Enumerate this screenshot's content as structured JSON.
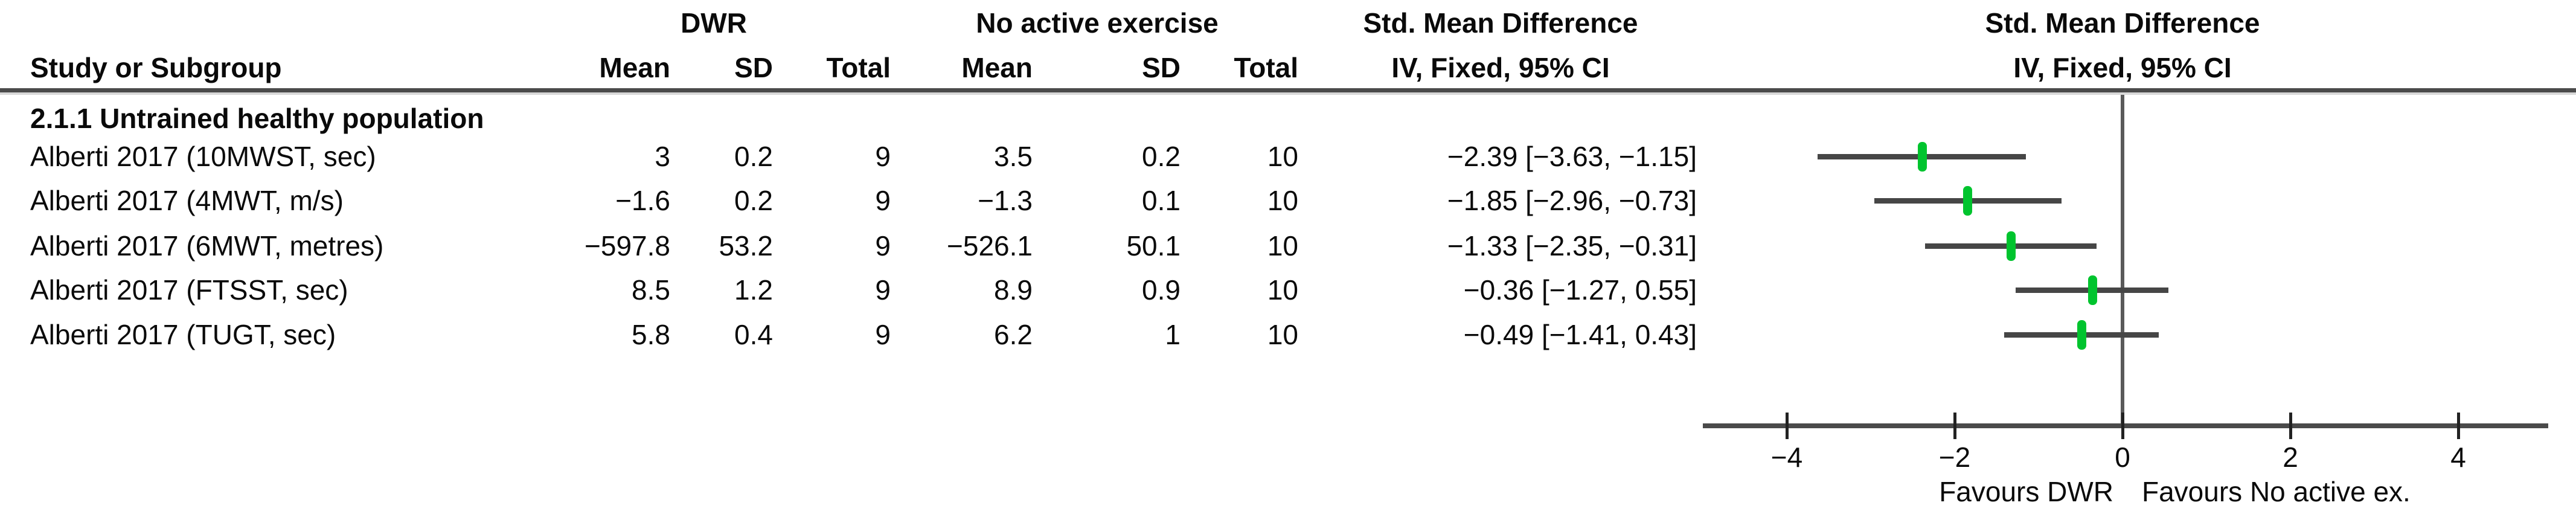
{
  "header": {
    "group1_label": "DWR",
    "group2_label": "No active exercise",
    "effect_label": "Std. Mean Difference",
    "effect_method_label": "IV, Fixed, 95% CI",
    "plot_effect_label": "Std. Mean Difference",
    "plot_effect_method_label": "IV, Fixed, 95% CI",
    "study_col_label": "Study or Subgroup",
    "mean_label": "Mean",
    "sd_label": "SD",
    "total_label": "Total"
  },
  "subgroup_title": "2.1.1 Untrained healthy population",
  "table_rows": [
    {
      "study": "Alberti 2017 (10MWST, sec)",
      "mean1": "3",
      "sd1": "0.2",
      "total1": "9",
      "mean2": "3.5",
      "sd2": "0.2",
      "total2": "10",
      "ci_text": "−2.39 [−3.63, −1.15]"
    },
    {
      "study": "Alberti 2017 (4MWT, m/s)",
      "mean1": "−1.6",
      "sd1": "0.2",
      "total1": "9",
      "mean2": "−1.3",
      "sd2": "0.1",
      "total2": "10",
      "ci_text": "−1.85 [−2.96, −0.73]"
    },
    {
      "study": "Alberti 2017 (6MWT, metres)",
      "mean1": "−597.8",
      "sd1": "53.2",
      "total1": "9",
      "mean2": "−526.1",
      "sd2": "50.1",
      "total2": "10",
      "ci_text": "−1.33 [−2.35, −0.31]"
    },
    {
      "study": "Alberti 2017 (FTSST, sec)",
      "mean1": "8.5",
      "sd1": "1.2",
      "total1": "9",
      "mean2": "8.9",
      "sd2": "0.9",
      "total2": "10",
      "ci_text": "−0.36 [−1.27, 0.55]"
    },
    {
      "study": "Alberti 2017 (TUGT, sec)",
      "mean1": "5.8",
      "sd1": "0.4",
      "total1": "9",
      "mean2": "6.2",
      "sd2": "1",
      "total2": "10",
      "ci_text": "−0.49 [−1.41, 0.43]"
    }
  ],
  "chart_data": {
    "type": "forest",
    "title": "Std. Mean Difference",
    "method": "IV, Fixed, 95% CI",
    "subgroup": "2.1.1 Untrained healthy population",
    "studies": [
      "Alberti 2017 (10MWST, sec)",
      "Alberti 2017 (4MWT, m/s)",
      "Alberti 2017 (6MWT, metres)",
      "Alberti 2017 (FTSST, sec)",
      "Alberti 2017 (TUGT, sec)"
    ],
    "estimates": [
      -2.39,
      -1.85,
      -1.33,
      -0.36,
      -0.49
    ],
    "ci_low": [
      -3.63,
      -2.96,
      -2.35,
      -1.27,
      -1.41
    ],
    "ci_high": [
      -1.15,
      -0.73,
      -0.31,
      0.55,
      0.43
    ],
    "x_ticks": [
      -4,
      -2,
      0,
      2,
      4
    ],
    "x_tick_labels": [
      "−4",
      "−2",
      "0",
      "2",
      "4"
    ],
    "x_range": [
      -5,
      5
    ],
    "favours_left": "Favours DWR",
    "favours_right": "Favours No active ex.",
    "marker_color": "#00c42e",
    "ci_line_color": "#464646",
    "axis_color": "#4a4a4a"
  }
}
